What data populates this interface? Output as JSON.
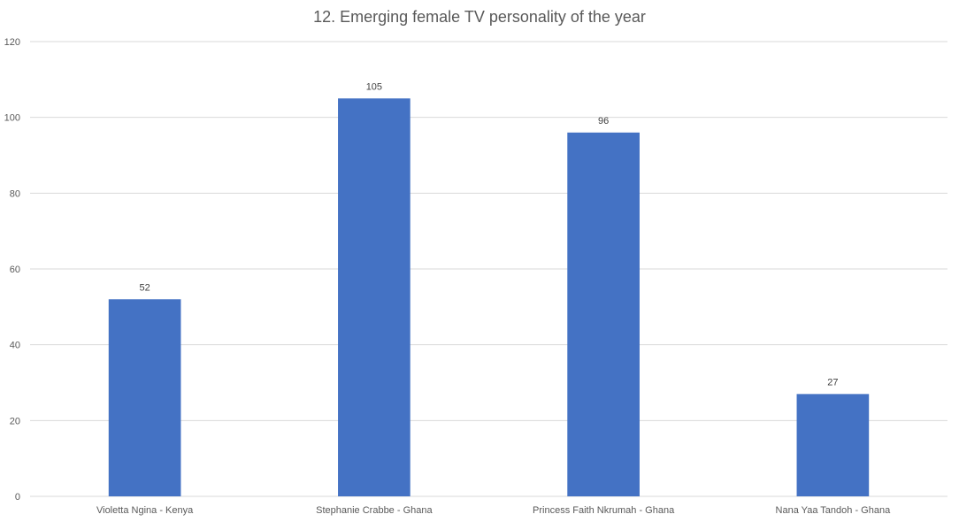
{
  "chart_data": {
    "type": "bar",
    "title": "12. Emerging female TV personality of the year",
    "xlabel": "",
    "ylabel": "",
    "categories": [
      "Violetta Ngina - Kenya",
      "Stephanie Crabbe - Ghana",
      "Princess Faith Nkrumah - Ghana",
      "Nana Yaa Tandoh - Ghana"
    ],
    "values": [
      52,
      105,
      96,
      27
    ],
    "ylim": [
      0,
      120
    ],
    "yticks": [
      0,
      20,
      40,
      60,
      80,
      100,
      120
    ],
    "grid": true,
    "legend": "none",
    "data_labels": true,
    "colors": {
      "bar": "#4472C4",
      "grid": "#D9D9D9",
      "axis_text": "#595959",
      "title": "#595959"
    }
  }
}
